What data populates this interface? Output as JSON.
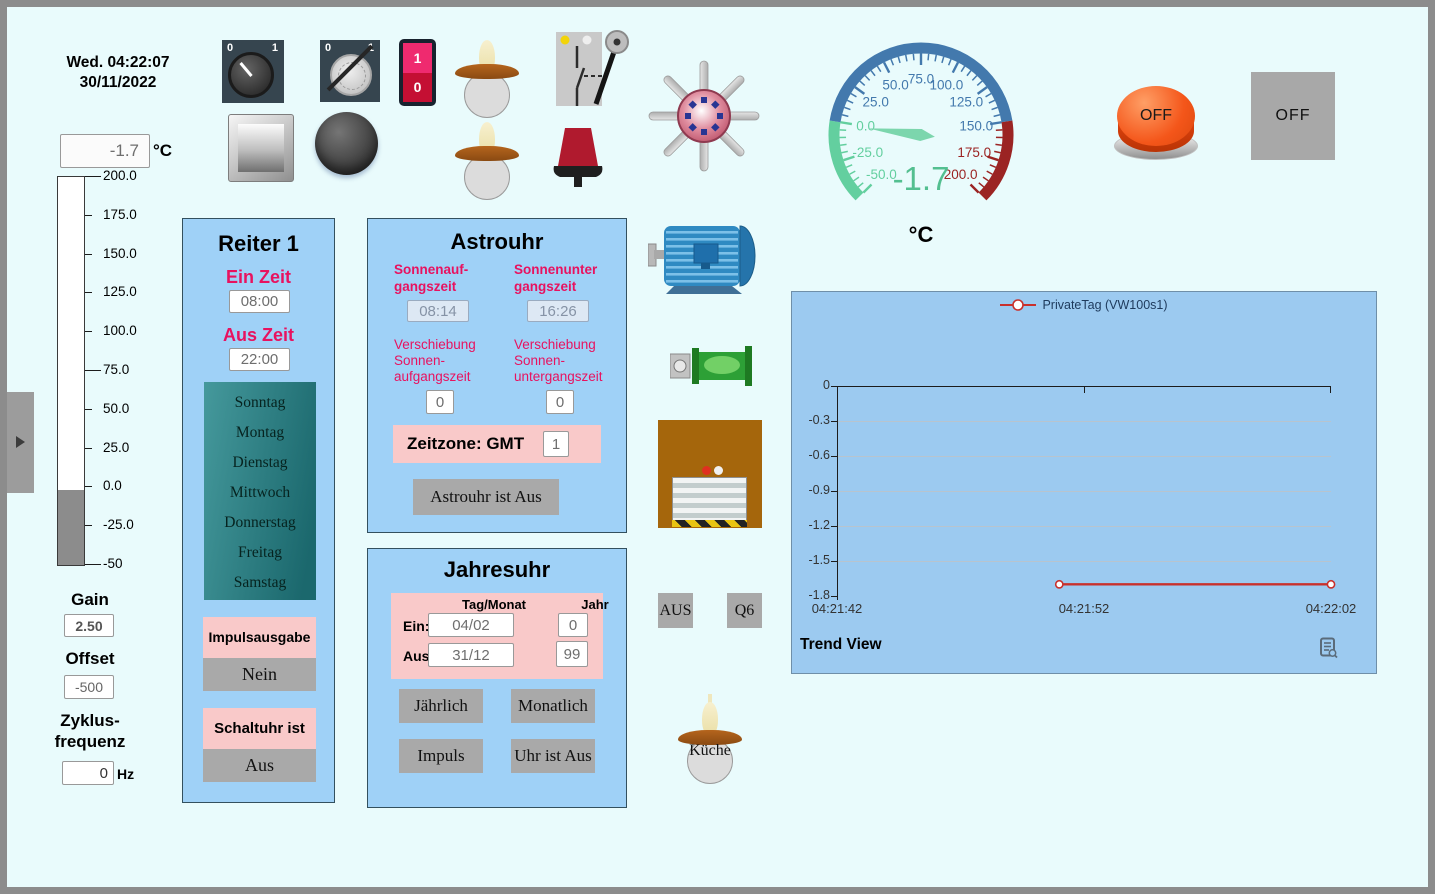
{
  "header": {
    "datetime_line1": "Wed. 04:22:07",
    "datetime_line2": "30/11/2022"
  },
  "temperature": {
    "value": "-1.7",
    "unit": "°C"
  },
  "thermometer": {
    "min": -50,
    "max": 200,
    "value": -1.7,
    "tick_labels": [
      "200.0",
      "175.0",
      "150.0",
      "125.0",
      "100.0",
      "75.0",
      "50.0",
      "25.0",
      "0.0",
      "-25.0",
      "-50"
    ]
  },
  "calibration": {
    "gain_label": "Gain",
    "gain_value": "2.50",
    "offset_label": "Offset",
    "offset_value": "-500",
    "cycle_label": "Zyklus-\nfrequenz",
    "cycle_value": "0",
    "cycle_unit": "Hz"
  },
  "reiter1": {
    "title": "Reiter 1",
    "ein_label": "Ein Zeit",
    "ein_value": "08:00",
    "aus_label": "Aus Zeit",
    "aus_value": "22:00",
    "days": [
      "Sonntag",
      "Montag",
      "Dienstag",
      "Mittwoch",
      "Donnerstag",
      "Freitag",
      "Samstag"
    ],
    "impuls_label": "Impulsausgabe",
    "impuls_state": "Nein",
    "schaltuhr_label": "Schaltuhr ist",
    "schaltuhr_state": "Aus"
  },
  "astrouhr": {
    "title": "Astrouhr",
    "sunrise_label": "Sonnenauf-\ngangszeit",
    "sunset_label": "Sonnenunter\ngangszeit",
    "sunrise_value": "08:14",
    "sunset_value": "16:26",
    "shift_sunrise_label": "Verschiebung\nSonnen-\naufgangszeit",
    "shift_sunset_label": "Verschiebung\nSonnen-\nuntergangszeit",
    "shift_sunrise_value": "0",
    "shift_sunset_value": "0",
    "timezone_label": "Zeitzone: GMT",
    "timezone_value": "1",
    "state_button": "Astrouhr ist Aus"
  },
  "jahresuhr": {
    "title": "Jahresuhr",
    "col_day_month": "Tag/Monat",
    "col_year": "Jahr",
    "ein_label": "Ein:",
    "ein_day_month": "04/02",
    "ein_year": "0",
    "aus_label": "Aus:",
    "aus_day_month": "31/12",
    "aus_year": "99",
    "btn_yearly": "Jährlich",
    "btn_monthly": "Monatlich",
    "btn_impulse": "Impuls",
    "btn_state": "Uhr ist Aus"
  },
  "switches": {
    "rotary_on_0": "0",
    "rotary_on_1": "1",
    "rotary_off_0": "0",
    "rotary_off_1": "1",
    "rocker_1": "1",
    "rocker_0": "0"
  },
  "buttons": {
    "off_round": "OFF",
    "off_square": "OFF",
    "aus": "AUS",
    "q6": "Q6"
  },
  "kueche_label": "Küche",
  "gauge": {
    "min": -50,
    "max": 200,
    "value": -1.7,
    "value_text": "-1.7",
    "unit": "°C",
    "minor_step": 5,
    "major_step": 25,
    "segments": [
      {
        "from": -50,
        "to": 0,
        "color": "#63cf9f"
      },
      {
        "from": 0,
        "to": 150,
        "color": "#4379ad"
      },
      {
        "from": 150,
        "to": 200,
        "color": "#9b2423"
      }
    ],
    "labels": [
      {
        "value": -50,
        "text": "-50.0",
        "color": "#63cf9f"
      },
      {
        "value": -25,
        "text": "-25.0",
        "color": "#63cf9f"
      },
      {
        "value": 0,
        "text": "0.0",
        "color": "#63cf9f"
      },
      {
        "value": 25,
        "text": "25.0",
        "color": "#4379ad"
      },
      {
        "value": 50,
        "text": "50.0",
        "color": "#4379ad"
      },
      {
        "value": 75,
        "text": "75.0",
        "color": "#4379ad"
      },
      {
        "value": 100,
        "text": "100.0",
        "color": "#4379ad"
      },
      {
        "value": 125,
        "text": "125.0",
        "color": "#4379ad"
      },
      {
        "value": 150,
        "text": "150.0",
        "color": "#4379ad"
      },
      {
        "value": 175,
        "text": "175.0",
        "color": "#9b2423"
      },
      {
        "value": 200,
        "text": "200.0",
        "color": "#9b2423"
      }
    ],
    "needle_color": "#7cd6ad",
    "value_color": "#53bf90"
  },
  "chart_data": {
    "type": "line",
    "footer_label": "Trend View",
    "legend": [
      {
        "name": "PrivateTag (VW100s1)",
        "color": "#c9302c"
      }
    ],
    "legend_position": "top",
    "grid": true,
    "x_ticks": [
      "04:21:42",
      "04:21:52",
      "04:22:02"
    ],
    "y_ticks": [
      0,
      -0.3,
      -0.6,
      -0.9,
      -1.2,
      -1.5,
      -1.8
    ],
    "ylim": [
      -1.8,
      0
    ],
    "series": [
      {
        "name": "PrivateTag (VW100s1)",
        "color": "#c9302c",
        "points": [
          {
            "t": "04:21:51",
            "y": -1.7
          },
          {
            "t": "04:22:02",
            "y": -1.7
          }
        ]
      }
    ]
  }
}
